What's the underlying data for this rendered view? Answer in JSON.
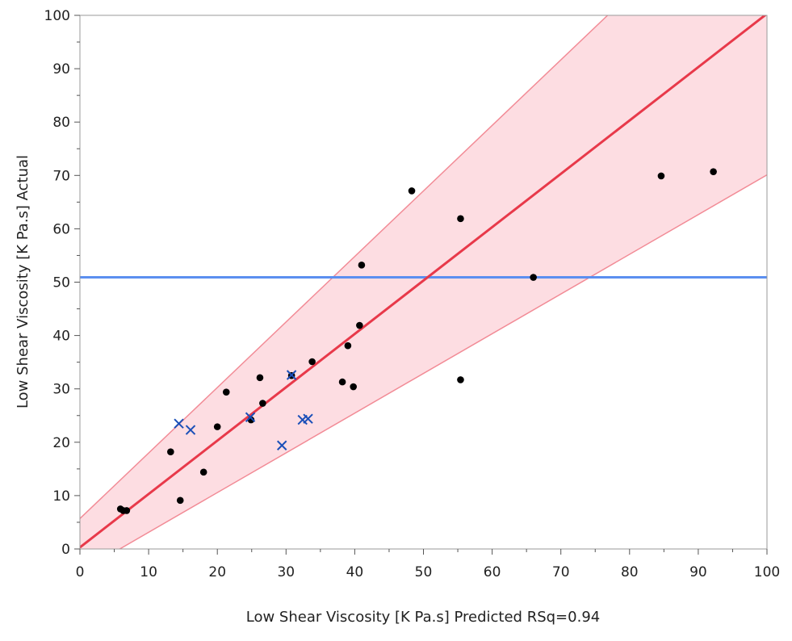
{
  "chart_data": {
    "type": "scatter",
    "xlabel": "Low Shear Viscosity [K Pa.s] Predicted RSq=0.94",
    "ylabel": "Low Shear Viscosity [K Pa.s] Actual",
    "xlim": [
      0,
      100
    ],
    "ylim": [
      0,
      100
    ],
    "x_ticks": [
      "0",
      "10",
      "20",
      "30",
      "40",
      "50",
      "60",
      "70",
      "80",
      "90",
      "100"
    ],
    "y_ticks": [
      "0",
      "10",
      "20",
      "30",
      "40",
      "50",
      "60",
      "70",
      "80",
      "90",
      "100"
    ],
    "grid": false,
    "mean_line": {
      "y": 50.9,
      "color": "#5b8ff0"
    },
    "fit_line": {
      "slope": 1.0,
      "intercept": 0.3,
      "color": "#e8394a"
    },
    "confidence_band": {
      "upper": [
        [
          0,
          5.7
        ],
        [
          76.8,
          100
        ]
      ],
      "lower": [
        [
          5.8,
          0
        ],
        [
          100,
          70.1
        ]
      ],
      "fill": "#fddde2",
      "stroke": "#f28b96"
    },
    "series": [
      {
        "marker": "dot",
        "color": "#000000",
        "points": [
          [
            5.9,
            7.5
          ],
          [
            6.3,
            7.2
          ],
          [
            6.8,
            7.2
          ],
          [
            13.2,
            18.2
          ],
          [
            14.6,
            9.1
          ],
          [
            18.0,
            14.4
          ],
          [
            20.0,
            22.9
          ],
          [
            21.3,
            29.4
          ],
          [
            24.9,
            24.2
          ],
          [
            26.2,
            32.1
          ],
          [
            26.6,
            27.3
          ],
          [
            30.8,
            32.5
          ],
          [
            33.8,
            35.1
          ],
          [
            38.2,
            31.3
          ],
          [
            39.0,
            38.1
          ],
          [
            39.8,
            30.4
          ],
          [
            40.7,
            41.9
          ],
          [
            41.0,
            53.2
          ],
          [
            48.3,
            67.1
          ],
          [
            55.4,
            61.9
          ],
          [
            55.4,
            31.7
          ],
          [
            66.0,
            50.9
          ],
          [
            84.6,
            69.9
          ],
          [
            92.2,
            70.7
          ]
        ]
      },
      {
        "marker": "x",
        "color": "#1a4fb8",
        "points": [
          [
            14.4,
            23.5
          ],
          [
            16.1,
            22.3
          ],
          [
            24.8,
            24.7
          ],
          [
            29.4,
            19.4
          ],
          [
            30.8,
            32.6
          ],
          [
            32.4,
            24.2
          ],
          [
            33.2,
            24.4
          ]
        ]
      }
    ]
  }
}
